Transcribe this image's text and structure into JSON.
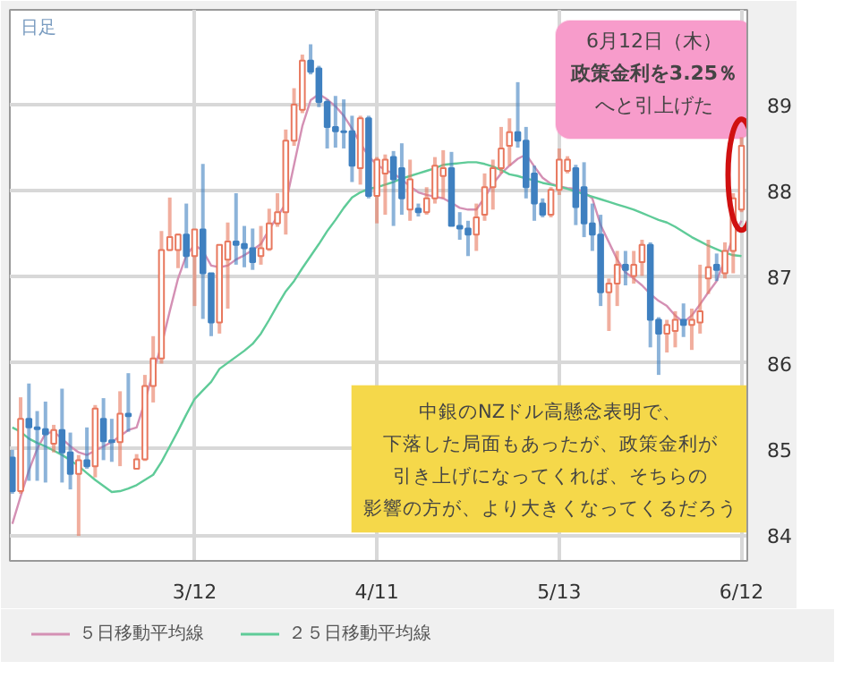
{
  "chart_data": {
    "type": "candlestick",
    "title": "日足",
    "categories": [
      null,
      null,
      null,
      null,
      null,
      null,
      null,
      null,
      null,
      null,
      null,
      null,
      null,
      null,
      null,
      null,
      null,
      null,
      null,
      null,
      null,
      null,
      "3/12",
      null,
      null,
      null,
      null,
      null,
      null,
      null,
      null,
      null,
      null,
      null,
      null,
      null,
      null,
      null,
      null,
      null,
      null,
      null,
      null,
      null,
      "4/11",
      null,
      null,
      null,
      null,
      null,
      null,
      null,
      null,
      null,
      null,
      null,
      null,
      null,
      null,
      null,
      null,
      null,
      null,
      null,
      null,
      null,
      "5/13",
      null,
      null,
      null,
      null,
      null,
      null,
      null,
      null,
      null,
      null,
      null,
      null,
      null,
      null,
      null,
      null,
      null,
      null,
      null,
      null,
      null,
      "6/12"
    ],
    "ohlc": [
      [
        84.9,
        84.99,
        84.48,
        84.51
      ],
      [
        84.51,
        85.6,
        84.48,
        85.35
      ],
      [
        85.35,
        85.76,
        84.63,
        85.25
      ],
      [
        85.25,
        85.44,
        84.63,
        85.23
      ],
      [
        85.23,
        85.55,
        84.61,
        85.17
      ],
      [
        85.06,
        85.28,
        84.96,
        85.22
      ],
      [
        85.22,
        85.7,
        84.61,
        84.96
      ],
      [
        84.96,
        85.19,
        84.53,
        84.71
      ],
      [
        84.71,
        84.93,
        83.99,
        84.87
      ],
      [
        84.87,
        85.25,
        84.77,
        84.8
      ],
      [
        84.8,
        85.51,
        84.67,
        85.47
      ],
      [
        85.35,
        85.59,
        84.87,
        85.09
      ],
      [
        85.1,
        85.35,
        84.85,
        85.08
      ],
      [
        85.08,
        85.67,
        84.8,
        85.41
      ],
      [
        85.41,
        85.88,
        85.2,
        85.38
      ],
      [
        84.77,
        84.94,
        84.77,
        84.88
      ],
      [
        84.88,
        85.86,
        84.86,
        85.73
      ],
      [
        85.73,
        86.31,
        85.54,
        86.05
      ],
      [
        86.05,
        87.53,
        85.99,
        87.31
      ],
      [
        87.31,
        87.92,
        87.3,
        87.46
      ],
      [
        87.31,
        87.5,
        87.1,
        87.49
      ],
      [
        87.49,
        87.85,
        87.1,
        87.24
      ],
      [
        87.24,
        87.55,
        86.66,
        87.55
      ],
      [
        87.55,
        88.31,
        86.51,
        87.04
      ],
      [
        87.04,
        87.04,
        86.31,
        86.47
      ],
      [
        86.47,
        87.37,
        86.34,
        87.37
      ],
      [
        87.2,
        87.63,
        86.63,
        87.41
      ],
      [
        87.41,
        87.97,
        87.14,
        87.37
      ],
      [
        87.38,
        87.59,
        87.11,
        87.33
      ],
      [
        87.33,
        87.56,
        87.08,
        87.17
      ],
      [
        87.24,
        87.59,
        87.14,
        87.33
      ],
      [
        87.32,
        87.79,
        87.3,
        87.62
      ],
      [
        87.62,
        87.97,
        87.58,
        87.75
      ],
      [
        87.75,
        88.71,
        87.49,
        88.58
      ],
      [
        88.58,
        89.19,
        88.52,
        89.0
      ],
      [
        88.94,
        89.58,
        88.9,
        89.51
      ],
      [
        89.51,
        89.7,
        89.35,
        89.38
      ],
      [
        89.42,
        89.45,
        88.97,
        89.03
      ],
      [
        89.03,
        89.06,
        88.49,
        88.74
      ],
      [
        88.74,
        89.1,
        88.5,
        88.69
      ],
      [
        88.69,
        89.06,
        88.49,
        88.68
      ],
      [
        88.69,
        88.87,
        88.1,
        88.29
      ],
      [
        88.26,
        88.87,
        88.07,
        88.84
      ],
      [
        88.84,
        88.87,
        87.91,
        87.94
      ],
      [
        87.94,
        88.39,
        87.62,
        88.36
      ],
      [
        88.2,
        88.42,
        87.72,
        88.36
      ],
      [
        88.39,
        88.46,
        87.59,
        88.13
      ],
      [
        88.26,
        88.55,
        87.72,
        87.91
      ],
      [
        87.78,
        88.36,
        87.65,
        88.13
      ],
      [
        87.79,
        87.85,
        87.7,
        87.75
      ],
      [
        87.75,
        88.04,
        87.72,
        87.91
      ],
      [
        87.91,
        88.39,
        87.85,
        88.29
      ],
      [
        88.17,
        88.47,
        87.91,
        88.26
      ],
      [
        88.26,
        88.45,
        87.59,
        87.59
      ],
      [
        87.59,
        87.75,
        87.43,
        87.56
      ],
      [
        87.56,
        87.65,
        87.24,
        87.49
      ],
      [
        87.49,
        87.85,
        87.3,
        87.69
      ],
      [
        87.72,
        88.2,
        87.65,
        88.04
      ],
      [
        88.04,
        88.36,
        87.78,
        88.26
      ],
      [
        88.26,
        88.74,
        88.2,
        88.49
      ],
      [
        88.52,
        88.84,
        88.29,
        88.68
      ],
      [
        88.68,
        89.26,
        88.5,
        88.58
      ],
      [
        88.58,
        88.74,
        87.91,
        88.04
      ],
      [
        88.2,
        88.29,
        87.65,
        87.85
      ],
      [
        87.85,
        87.91,
        87.69,
        87.72
      ],
      [
        87.72,
        88.04,
        87.69,
        88.01
      ],
      [
        88.01,
        88.49,
        87.95,
        88.36
      ],
      [
        88.23,
        88.4,
        88.2,
        88.36
      ],
      [
        88.26,
        88.3,
        87.6,
        87.81
      ],
      [
        88.04,
        88.33,
        87.46,
        87.62
      ],
      [
        87.62,
        87.85,
        87.3,
        87.49
      ],
      [
        87.49,
        87.72,
        86.66,
        86.82
      ],
      [
        86.82,
        86.98,
        86.37,
        86.92
      ],
      [
        86.92,
        87.3,
        86.66,
        87.14
      ],
      [
        87.14,
        87.3,
        86.9,
        87.08
      ],
      [
        87.01,
        87.3,
        86.92,
        87.14
      ],
      [
        87.17,
        87.43,
        87.01,
        87.37
      ],
      [
        87.37,
        87.4,
        86.18,
        86.5
      ],
      [
        86.5,
        86.53,
        85.86,
        86.34
      ],
      [
        86.34,
        86.5,
        86.12,
        86.44
      ],
      [
        86.37,
        86.6,
        86.18,
        86.5
      ],
      [
        86.5,
        86.69,
        86.3,
        86.44
      ],
      [
        86.44,
        86.63,
        86.15,
        86.5
      ],
      [
        86.47,
        87.14,
        86.34,
        86.6
      ],
      [
        86.98,
        87.43,
        86.8,
        87.11
      ],
      [
        87.14,
        87.27,
        86.95,
        87.08
      ],
      [
        87.04,
        87.4,
        86.98,
        87.3
      ],
      [
        87.3,
        87.97,
        87.04,
        87.91
      ],
      [
        87.78,
        88.62,
        87.75,
        88.52
      ]
    ],
    "colors": [
      "#3f80c0",
      "#e8785e",
      "#3f80c0",
      "#3f80c0",
      "#3f80c0",
      "#e8785e",
      "#3f80c0",
      "#3f80c0",
      "#e8785e",
      "#3f80c0",
      "#e8785e",
      "#3f80c0",
      "#3f80c0",
      "#e8785e",
      "#3f80c0",
      "#e8785e",
      "#e8785e",
      "#e8785e",
      "#e8785e",
      "#e8785e",
      "#e8785e",
      "#3f80c0",
      "#e8785e",
      "#3f80c0",
      "#3f80c0",
      "#e8785e",
      "#e8785e",
      "#3f80c0",
      "#3f80c0",
      "#3f80c0",
      "#e8785e",
      "#e8785e",
      "#e8785e",
      "#e8785e",
      "#e8785e",
      "#e8785e",
      "#3f80c0",
      "#3f80c0",
      "#3f80c0",
      "#3f80c0",
      "#3f80c0",
      "#3f80c0",
      "#e8785e",
      "#3f80c0",
      "#e8785e",
      "#e8785e",
      "#3f80c0",
      "#3f80c0",
      "#e8785e",
      "#3f80c0",
      "#e8785e",
      "#e8785e",
      "#e8785e",
      "#3f80c0",
      "#3f80c0",
      "#3f80c0",
      "#e8785e",
      "#e8785e",
      "#e8785e",
      "#e8785e",
      "#e8785e",
      "#3f80c0",
      "#3f80c0",
      "#3f80c0",
      "#3f80c0",
      "#e8785e",
      "#e8785e",
      "#e8785e",
      "#3f80c0",
      "#3f80c0",
      "#3f80c0",
      "#3f80c0",
      "#e8785e",
      "#e8785e",
      "#3f80c0",
      "#e8785e",
      "#e8785e",
      "#3f80c0",
      "#3f80c0",
      "#e8785e",
      "#e8785e",
      "#3f80c0",
      "#e8785e",
      "#e8785e",
      "#e8785e",
      "#3f80c0",
      "#e8785e",
      "#e8785e",
      "#e8785e"
    ],
    "series": [
      {
        "type": "line",
        "name": "５日移動平均線",
        "color": "#d490b4",
        "values": [
          84.13,
          84.45,
          84.75,
          85.0,
          85.18,
          85.2,
          85.12,
          85.03,
          84.96,
          84.93,
          84.98,
          85.03,
          85.08,
          85.15,
          85.22,
          85.25,
          85.55,
          85.9,
          86.2,
          86.6,
          86.98,
          87.25,
          87.37,
          87.3,
          87.13,
          87.11,
          87.13,
          87.2,
          87.25,
          87.31,
          87.38,
          87.55,
          87.7,
          87.85,
          88.3,
          88.75,
          89.05,
          89.12,
          89.06,
          88.98,
          88.87,
          88.72,
          88.55,
          88.4,
          88.3,
          88.24,
          88.2,
          88.13,
          88.05,
          87.98,
          87.95,
          87.93,
          87.91,
          87.86,
          87.8,
          87.78,
          87.78,
          87.92,
          88.08,
          88.2,
          88.29,
          88.37,
          88.42,
          88.28,
          88.15,
          88.08,
          88.05,
          88.03,
          88.02,
          87.98,
          87.91,
          87.6,
          87.4,
          87.2,
          87.05,
          86.98,
          86.9,
          86.8,
          86.72,
          86.66,
          86.55,
          86.47,
          86.55,
          86.68,
          86.82,
          86.95,
          87.2,
          87.46,
          87.65
        ]
      },
      {
        "type": "line",
        "name": "２５日移動平均線",
        "color": "#5fcb98",
        "values": [
          85.25,
          85.2,
          85.12,
          85.07,
          85.03,
          84.98,
          84.93,
          84.87,
          84.8,
          84.72,
          84.64,
          84.57,
          84.5,
          84.51,
          84.54,
          84.58,
          84.64,
          84.7,
          84.85,
          85.03,
          85.21,
          85.4,
          85.58,
          85.68,
          85.78,
          85.93,
          86.0,
          86.07,
          86.14,
          86.22,
          86.34,
          86.5,
          86.67,
          86.83,
          86.95,
          87.1,
          87.24,
          87.38,
          87.53,
          87.66,
          87.8,
          87.92,
          87.98,
          88.02,
          88.04,
          88.07,
          88.1,
          88.14,
          88.17,
          88.2,
          88.23,
          88.26,
          88.3,
          88.31,
          88.32,
          88.33,
          88.33,
          88.31,
          88.28,
          88.24,
          88.19,
          88.17,
          88.14,
          88.12,
          88.09,
          88.07,
          88.05,
          88.02,
          87.99,
          87.96,
          87.93,
          87.9,
          87.87,
          87.84,
          87.81,
          87.78,
          87.74,
          87.7,
          87.66,
          87.63,
          87.58,
          87.52,
          87.46,
          87.41,
          87.36,
          87.32,
          87.28,
          87.25,
          87.24
        ]
      }
    ],
    "ylim": [
      83.7,
      90.1
    ],
    "yticks": [
      84,
      85,
      86,
      87,
      88,
      89
    ],
    "grid": true,
    "legend": "bottom",
    "annotations": [
      "6月12日（木）",
      "政策金利を3.25％",
      "へと引上げた",
      "中銀のNZドル高懸念表明で、",
      "下落した局面もあったが、政策金利が",
      "引き上げになってくれば、そちらの",
      "影響の方が、より大きくなってくるだろう"
    ]
  }
}
